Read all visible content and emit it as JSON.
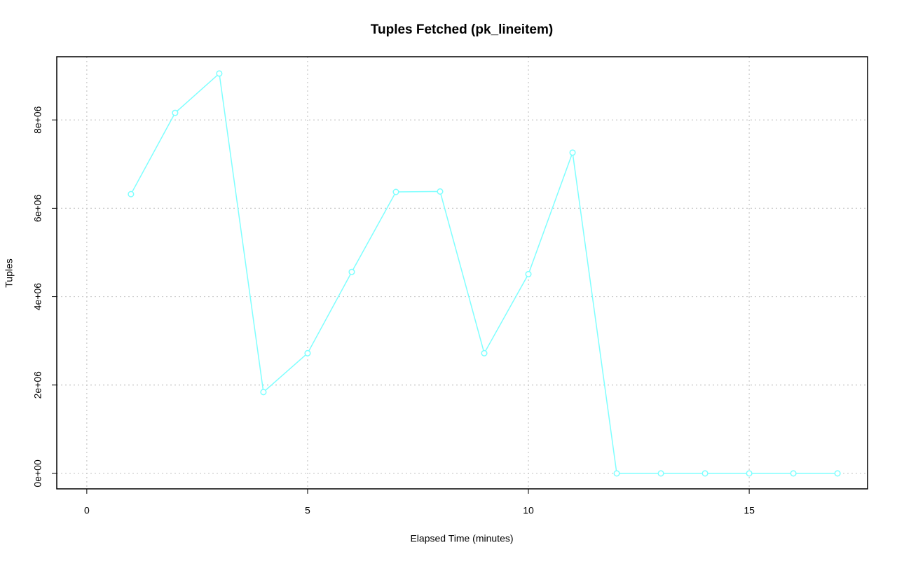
{
  "chart_data": {
    "type": "line",
    "title": "Tuples Fetched (pk_lineitem)",
    "x_label": "Elapsed Time (minutes)",
    "y_label": "Tuples",
    "x": [
      1,
      2,
      3,
      4,
      5,
      6,
      7,
      8,
      9,
      10,
      11,
      12,
      13,
      14,
      15,
      16,
      17
    ],
    "series": [
      {
        "name": "Tuples",
        "color": "#7fffff",
        "values": [
          6320000,
          8160000,
          9050000,
          1840000,
          2720000,
          4560000,
          6370000,
          6380000,
          2720000,
          4510000,
          7260000,
          0,
          0,
          0,
          0,
          0,
          0
        ]
      }
    ],
    "xlim": [
      -0.68,
      17.68
    ],
    "xticks": [
      0,
      5,
      10,
      15
    ],
    "ylim": [
      -350000,
      9430000
    ],
    "yticks": [
      {
        "value": 0,
        "label": "0e+00"
      },
      {
        "value": 2000000,
        "label": "2e+06"
      },
      {
        "value": 4000000,
        "label": "4e+06"
      },
      {
        "value": 6000000,
        "label": "6e+06"
      },
      {
        "value": 8000000,
        "label": "8e+06"
      }
    ],
    "grid": true
  }
}
